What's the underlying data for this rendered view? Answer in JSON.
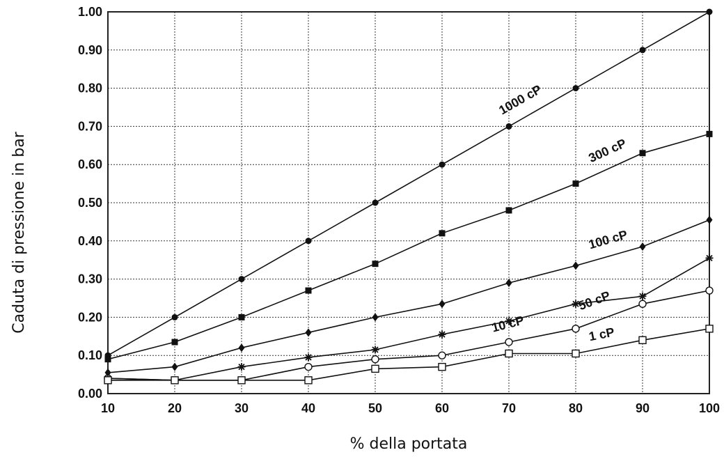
{
  "chart_data": {
    "type": "line",
    "xlabel": "% della portata",
    "ylabel": "Caduta di pressione in bar",
    "x": [
      10,
      20,
      30,
      40,
      50,
      60,
      70,
      80,
      90,
      100
    ],
    "xlim": [
      10,
      100
    ],
    "ylim": [
      0,
      1.0
    ],
    "x_ticks": [
      "10",
      "20",
      "30",
      "40",
      "50",
      "60",
      "70",
      "80",
      "90",
      "100"
    ],
    "y_ticks": [
      "0.00",
      "0.10",
      "0.20",
      "0.30",
      "0.40",
      "0.50",
      "0.60",
      "0.70",
      "0.80",
      "0.90",
      "1.00"
    ],
    "grid": true,
    "series": [
      {
        "name": "1000 cP",
        "marker": "filled-circle",
        "values": [
          0.1,
          0.2,
          0.3,
          0.4,
          0.5,
          0.6,
          0.7,
          0.8,
          0.9,
          1.0
        ]
      },
      {
        "name": "300 cP",
        "marker": "filled-square",
        "values": [
          0.09,
          0.135,
          0.2,
          0.27,
          0.34,
          0.42,
          0.48,
          0.55,
          0.63,
          0.68
        ]
      },
      {
        "name": "100 cP",
        "marker": "filled-diamond",
        "values": [
          0.055,
          0.07,
          0.12,
          0.16,
          0.2,
          0.235,
          0.29,
          0.335,
          0.385,
          0.455
        ]
      },
      {
        "name": "50 cP",
        "marker": "open-circle",
        "values": [
          0.04,
          0.035,
          0.035,
          0.07,
          0.09,
          0.1,
          0.135,
          0.17,
          0.235,
          0.27
        ]
      },
      {
        "name": "10 cP",
        "marker": "star",
        "values": [
          0.04,
          0.035,
          0.07,
          0.095,
          0.115,
          0.155,
          0.19,
          0.235,
          0.255,
          0.355
        ]
      },
      {
        "name": "1 cP",
        "marker": "open-square",
        "values": [
          0.035,
          0.035,
          0.035,
          0.035,
          0.065,
          0.07,
          0.105,
          0.105,
          0.14,
          0.17
        ]
      }
    ]
  }
}
